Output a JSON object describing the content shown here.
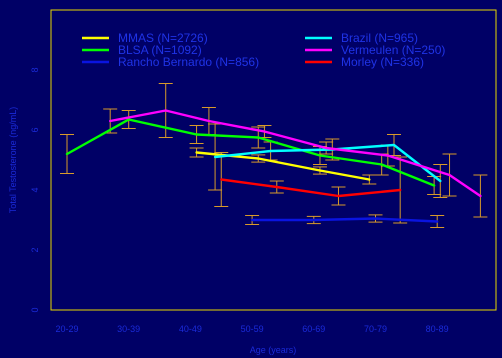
{
  "chart_data": {
    "type": "line",
    "title": "",
    "xlabel": "Age (years)",
    "ylabel": "Total Testosterone (ng/mL)",
    "categories": [
      "20-29",
      "30-39",
      "40-49",
      "50-59",
      "60-69",
      "70-79",
      "80-89"
    ],
    "ylim": [
      0,
      10
    ],
    "yticks": [
      0,
      2,
      4,
      6,
      8
    ],
    "grid": false,
    "legend_position": "top",
    "colors": {
      "background": "#000066",
      "frame": "#e8d800",
      "text": "#1a2ad8",
      "error_bars": "#d89a2a"
    },
    "series": [
      {
        "name": "MMAS (N=2726)",
        "color": "#ffff00",
        "points": [
          {
            "x": 2.1,
            "y": 5.25,
            "err": 0.15
          },
          {
            "x": 3.1,
            "y": 5.05,
            "err": 0.12
          },
          {
            "x": 4.1,
            "y": 4.65,
            "err": 0.12
          },
          {
            "x": 4.9,
            "y": 4.35,
            "err": 0.15
          }
        ]
      },
      {
        "name": "BLSA (N=1092)",
        "color": "#00ff00",
        "points": [
          {
            "x": 0.0,
            "y": 5.2,
            "err": 0.65
          },
          {
            "x": 1.0,
            "y": 6.35,
            "err": 0.3
          },
          {
            "x": 2.1,
            "y": 5.85,
            "err": 0.3
          },
          {
            "x": 3.1,
            "y": 5.75,
            "err": 0.35
          },
          {
            "x": 4.1,
            "y": 5.15,
            "err": 0.3
          },
          {
            "x": 5.1,
            "y": 4.85,
            "err": 0.35
          },
          {
            "x": 5.95,
            "y": 4.15,
            "err": 0.3
          }
        ]
      },
      {
        "name": "Rancho Bernardo (N=856)",
        "color": "#0a14e0",
        "points": [
          {
            "x": 3.0,
            "y": 3.0,
            "err": 0.15
          },
          {
            "x": 4.0,
            "y": 3.0,
            "err": 0.12
          },
          {
            "x": 5.0,
            "y": 3.05,
            "err": 0.12
          },
          {
            "x": 6.0,
            "y": 2.95,
            "err": 0.2
          }
        ]
      },
      {
        "name": "Brazil (N=965)",
        "color": "#00ffff",
        "points": [
          {
            "x": 2.4,
            "y": 5.1,
            "err": 1.1
          },
          {
            "x": 3.3,
            "y": 5.3,
            "err": 0.3
          },
          {
            "x": 4.3,
            "y": 5.35,
            "err": 0.35
          },
          {
            "x": 5.3,
            "y": 5.5,
            "err": 0.35
          },
          {
            "x": 6.05,
            "y": 4.3,
            "err": 0.55
          }
        ]
      },
      {
        "name": "Vermeulen (N=250)",
        "color": "#ff00ff",
        "points": [
          {
            "x": 0.7,
            "y": 6.3,
            "err": 0.4
          },
          {
            "x": 1.6,
            "y": 6.65,
            "err": 0.9
          },
          {
            "x": 2.3,
            "y": 6.3,
            "err": 0.45
          },
          {
            "x": 3.2,
            "y": 5.95,
            "err": 0.2
          },
          {
            "x": 4.2,
            "y": 5.4,
            "err": 0.2
          },
          {
            "x": 5.2,
            "y": 5.15,
            "err": 0.35
          },
          {
            "x": 6.2,
            "y": 4.5,
            "err": 0.7
          },
          {
            "x": 6.7,
            "y": 3.8,
            "err": 0.7
          }
        ]
      },
      {
        "name": "Morley (N=336)",
        "color": "#ff0000",
        "points": [
          {
            "x": 2.5,
            "y": 4.35,
            "err": 0.9
          },
          {
            "x": 3.4,
            "y": 4.1,
            "err": 0.2
          },
          {
            "x": 4.4,
            "y": 3.8,
            "err": 0.3
          },
          {
            "x": 5.4,
            "y": 4.0,
            "err": 1.1
          }
        ]
      }
    ]
  }
}
